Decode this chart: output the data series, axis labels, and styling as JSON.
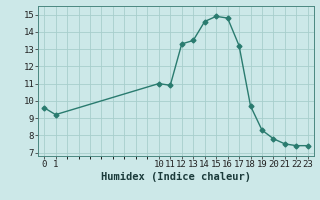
{
  "x": [
    0,
    1,
    10,
    11,
    12,
    13,
    14,
    15,
    16,
    17,
    18,
    19,
    20,
    21,
    22,
    23
  ],
  "y": [
    9.6,
    9.2,
    11.0,
    10.9,
    13.3,
    13.5,
    14.6,
    14.9,
    14.8,
    13.2,
    9.7,
    8.3,
    7.8,
    7.5,
    7.4,
    7.4
  ],
  "line_color": "#2a7b6f",
  "bg_color": "#cce8e8",
  "grid_color": "#a8cecc",
  "xlabel": "Humidex (Indice chaleur)",
  "ylim": [
    6.8,
    15.5
  ],
  "xlim": [
    -0.5,
    23.5
  ],
  "yticks": [
    7,
    8,
    9,
    10,
    11,
    12,
    13,
    14,
    15
  ],
  "xticks": [
    0,
    1,
    10,
    11,
    12,
    13,
    14,
    15,
    16,
    17,
    18,
    19,
    20,
    21,
    22,
    23
  ],
  "marker": "D",
  "markersize": 2.5,
  "linewidth": 1.0,
  "xlabel_fontsize": 7.5,
  "tick_fontsize": 6.5
}
